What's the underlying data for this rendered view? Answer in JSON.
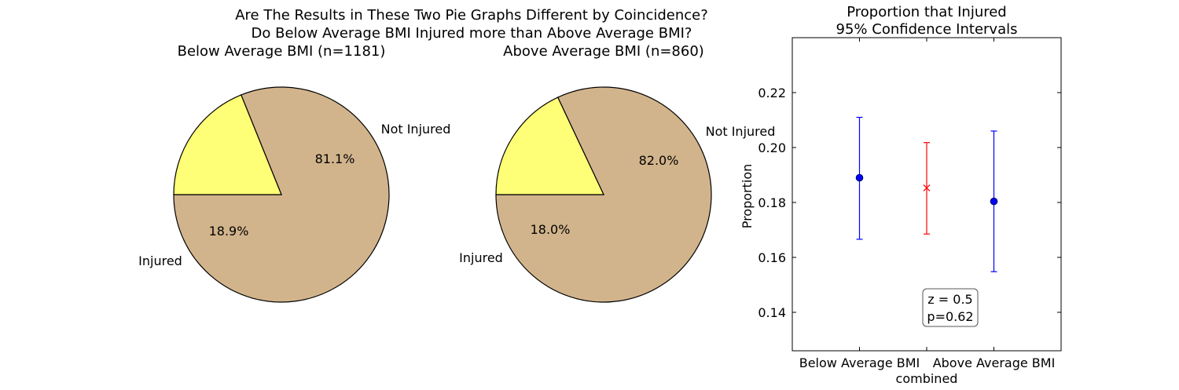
{
  "figure": {
    "suptitle_line1": "Are The Results in These Two Pie Graphs Different by Coincidence?",
    "suptitle_line2": "Do Below Average BMI Injured more than Above Average BMI?"
  },
  "chart_data": [
    {
      "type": "pie",
      "title": "Below Average BMI (n=1181)",
      "labels": [
        "Not Injured",
        "Injured"
      ],
      "values": [
        81.1,
        18.9
      ],
      "value_labels": [
        "81.1%",
        "18.9%"
      ],
      "colors": [
        "#d2b48c",
        "#ffff77"
      ],
      "start_angle_deg": 180
    },
    {
      "type": "pie",
      "title": "Above Average BMI (n=860)",
      "labels": [
        "Not Injured",
        "Injured"
      ],
      "values": [
        82.0,
        18.0
      ],
      "value_labels": [
        "82.0%",
        "18.0%"
      ],
      "colors": [
        "#d2b48c",
        "#ffff77"
      ],
      "start_angle_deg": 180
    },
    {
      "type": "scatter",
      "title_line1": "Proportion that Injured",
      "title_line2": "95% Confidence Intervals",
      "ylabel": "Proportion",
      "categories": [
        "Below Average BMI",
        "combined",
        "Above Average BMI"
      ],
      "ylim": [
        0.126,
        0.24
      ],
      "yticks": [
        0.14,
        0.16,
        0.18,
        0.2,
        0.22
      ],
      "ytick_labels": [
        "0.14",
        "0.16",
        "0.18",
        "0.20",
        "0.22"
      ],
      "points": [
        {
          "category": "Below Average BMI",
          "value": 0.189,
          "lower": 0.1666,
          "upper": 0.211,
          "color": "#0000ff",
          "marker": "circle"
        },
        {
          "category": "combined",
          "value": 0.1853,
          "lower": 0.1685,
          "upper": 0.2018,
          "color": "#ff0000",
          "marker": "x"
        },
        {
          "category": "Above Average BMI",
          "value": 0.1804,
          "lower": 0.1548,
          "upper": 0.206,
          "color": "#0000ff",
          "marker": "circle"
        }
      ],
      "annotation_line1": "z = 0.5",
      "annotation_line2": "p=0.62"
    }
  ]
}
